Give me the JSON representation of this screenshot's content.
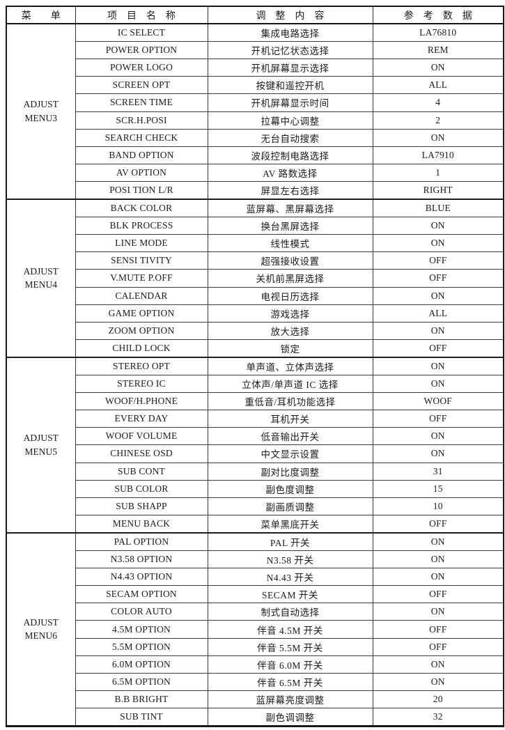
{
  "page": {
    "background_color": "#ffffff",
    "text_color": "#1b1b1b",
    "border_color": "#161616"
  },
  "table": {
    "headers": [
      {
        "label": "菜　　单"
      },
      {
        "label": "项　目　名　称"
      },
      {
        "label": "调　整　内　容"
      },
      {
        "label": "参　考　数　据"
      }
    ],
    "groups": [
      {
        "menu_line1": "ADJUST",
        "menu_line2": "MENU3",
        "rows": [
          {
            "item": "IC SELECT",
            "content": "集成电路选择",
            "value": "LA76810"
          },
          {
            "item": "POWER OPTION",
            "content": "开机记忆状态选择",
            "value": "REM"
          },
          {
            "item": "POWER LOGO",
            "content": "开机屏幕显示选择",
            "value": "ON"
          },
          {
            "item": "SCREEN OPT",
            "content": "按键和遥控开机",
            "value": "ALL"
          },
          {
            "item": "SCREEN TIME",
            "content": "开机屏幕显示时间",
            "value": "4"
          },
          {
            "item": "SCR.H.POSI",
            "content": "拉幕中心调整",
            "value": "2"
          },
          {
            "item": "SEARCH CHECK",
            "content": "无台自动搜索",
            "value": "ON"
          },
          {
            "item": "BAND OPTION",
            "content": "波段控制电路选择",
            "value": "LA7910"
          },
          {
            "item": "AV OPTION",
            "content": "AV 路数选择",
            "value": "1"
          },
          {
            "item": "POSI TION L/R",
            "content": "屏显左右选择",
            "value": "RIGHT"
          }
        ]
      },
      {
        "menu_line1": "ADJUST",
        "menu_line2": "MENU4",
        "rows": [
          {
            "item": "BACK COLOR",
            "content": "蓝屏幕、黑屏幕选择",
            "value": "BLUE"
          },
          {
            "item": "BLK PROCESS",
            "content": "换台黑屏选择",
            "value": "ON"
          },
          {
            "item": "LINE MODE",
            "content": "线性模式",
            "value": "ON"
          },
          {
            "item": "SENSI TIVITY",
            "content": "超强接收设置",
            "value": "OFF"
          },
          {
            "item": "V.MUTE P.OFF",
            "content": "关机前黑屏选择",
            "value": "OFF"
          },
          {
            "item": "CALENDAR",
            "content": "电视日历选择",
            "value": "ON"
          },
          {
            "item": "GAME OPTION",
            "content": "游戏选择",
            "value": "ALL"
          },
          {
            "item": "ZOOM OPTION",
            "content": "放大选择",
            "value": "ON"
          },
          {
            "item": "CHILD LOCK",
            "content": "锁定",
            "value": "OFF"
          }
        ]
      },
      {
        "menu_line1": "ADJUST",
        "menu_line2": "MENU5",
        "rows": [
          {
            "item": "STEREO OPT",
            "content": "单声道、立体声选择",
            "value": "ON"
          },
          {
            "item": "STEREO IC",
            "content": "立体声/单声道 IC 选择",
            "value": "ON"
          },
          {
            "item": "WOOF/H.PHONE",
            "content": "重低音/耳机功能选择",
            "value": "WOOF"
          },
          {
            "item": "EVERY DAY",
            "content": "耳机开关",
            "value": "OFF"
          },
          {
            "item": "WOOF VOLUME",
            "content": "低音输出开关",
            "value": "ON"
          },
          {
            "item": "CHINESE OSD",
            "content": "中文显示设置",
            "value": "ON"
          },
          {
            "item": "SUB CONT",
            "content": "副对比度调整",
            "value": "31"
          },
          {
            "item": "SUB COLOR",
            "content": "副色度调整",
            "value": "15"
          },
          {
            "item": "SUB SHAPP",
            "content": "副画质调整",
            "value": "10"
          },
          {
            "item": "MENU BACK",
            "content": "菜单黑底开关",
            "value": "OFF"
          }
        ]
      },
      {
        "menu_line1": "ADJUST",
        "menu_line2": "MENU6",
        "rows": [
          {
            "item": "PAL OPTION",
            "content": "PAL 开关",
            "value": "ON"
          },
          {
            "item": "N3.58 OPTION",
            "content": "N3.58 开关",
            "value": "ON"
          },
          {
            "item": "N4.43 OPTION",
            "content": "N4.43 开关",
            "value": "ON"
          },
          {
            "item": "SECAM OPTION",
            "content": "SECAM 开关",
            "value": "OFF"
          },
          {
            "item": "COLOR AUTO",
            "content": "制式自动选择",
            "value": "ON"
          },
          {
            "item": "4.5M OPTION",
            "content": "伴音 4.5M 开关",
            "value": "OFF"
          },
          {
            "item": "5.5M OPTION",
            "content": "伴音 5.5M 开关",
            "value": "OFF"
          },
          {
            "item": "6.0M OPTION",
            "content": "伴音 6.0M 开关",
            "value": "ON"
          },
          {
            "item": "6.5M OPTION",
            "content": "伴音 6.5M 开关",
            "value": "ON"
          },
          {
            "item": "B.B BRIGHT",
            "content": "蓝屏幕亮度调整",
            "value": "20"
          },
          {
            "item": "SUB TINT",
            "content": "副色调调整",
            "value": "32"
          }
        ]
      }
    ]
  }
}
